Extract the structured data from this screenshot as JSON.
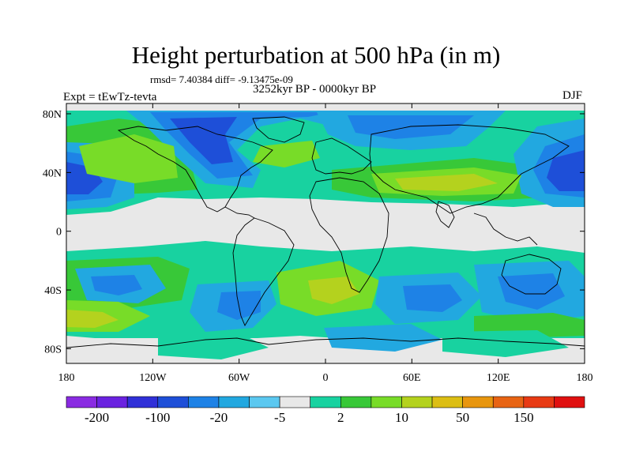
{
  "title": "Height perturbation at 500 hPa (in m)",
  "stats_line": "rmsd= 7.40384 diff= -9.13475e-09",
  "period": "3252kyr BP - 0000kyr BP",
  "experiment": "Expt = tEwTz-tevta",
  "season": "DJF",
  "lat_ticks": [
    {
      "label": "80N",
      "lat": 80
    },
    {
      "label": "40N",
      "lat": 40
    },
    {
      "label": "0",
      "lat": 0
    },
    {
      "label": "40S",
      "lat": -40
    },
    {
      "label": "80S",
      "lat": -80
    }
  ],
  "lon_ticks": [
    {
      "label": "180",
      "lon": -180
    },
    {
      "label": "120W",
      "lon": -120
    },
    {
      "label": "60W",
      "lon": -60
    },
    {
      "label": "0",
      "lon": 0
    },
    {
      "label": "60E",
      "lon": 60
    },
    {
      "label": "120E",
      "lon": 120
    },
    {
      "label": "180",
      "lon": 180
    }
  ],
  "colorbar": {
    "colors": [
      "#8a2be2",
      "#6a22e0",
      "#3030d8",
      "#1e4fd8",
      "#1e82e6",
      "#22a8e0",
      "#5bc8f0",
      "#e8e8e8",
      "#18d2a0",
      "#38c838",
      "#78dc28",
      "#b4d21e",
      "#dcbe14",
      "#e8960e",
      "#e86414",
      "#e83a14",
      "#e01010"
    ],
    "labels": [
      {
        "text": "-200",
        "boundary": 1
      },
      {
        "text": "-100",
        "boundary": 3
      },
      {
        "text": "-20",
        "boundary": 5
      },
      {
        "text": "-5",
        "boundary": 7
      },
      {
        "text": "2",
        "boundary": 9
      },
      {
        "text": "10",
        "boundary": 11
      },
      {
        "text": "50",
        "boundary": 13
      },
      {
        "text": "150",
        "boundary": 15
      }
    ]
  }
}
